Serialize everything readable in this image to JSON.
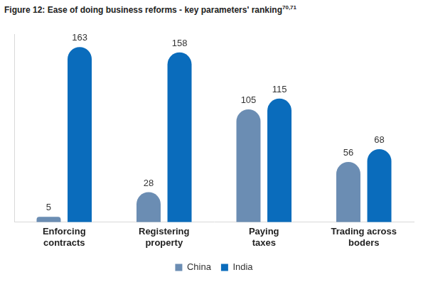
{
  "chart_data": {
    "type": "bar",
    "title": "Figure 12: Ease of doing business reforms - key parameters' ranking",
    "title_superscript": "70,71",
    "categories": [
      "Enforcing contracts",
      "Registering property",
      "Paying taxes",
      "Trading across boders"
    ],
    "series": [
      {
        "name": "China",
        "color": "#6b8db3",
        "values": [
          5,
          28,
          105,
          56
        ]
      },
      {
        "name": "India",
        "color": "#0a6cbc",
        "values": [
          163,
          158,
          115,
          68
        ]
      }
    ],
    "ylim": [
      0,
      175
    ],
    "grid": false,
    "legend": "bottom",
    "data_labels": true,
    "tick_labels": "x"
  }
}
